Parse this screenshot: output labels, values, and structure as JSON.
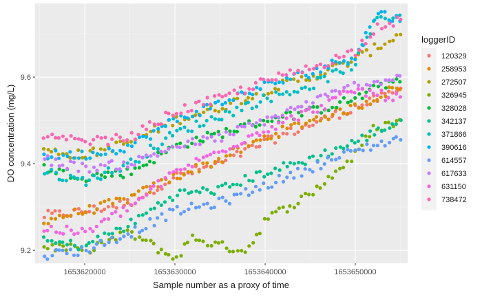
{
  "chart_data": {
    "type": "scatter",
    "title": "",
    "xlabel": "Sample number as a proxy of time",
    "ylabel": "DO concentration (mg/L)",
    "xlim": [
      1653614500,
      1653655800
    ],
    "ylim": [
      9.17,
      9.77
    ],
    "x_ticks": [
      1653620000,
      1653630000,
      1653640000,
      1653650000
    ],
    "x_tick_labels": [
      "1653620000",
      "1653630000",
      "1653640000",
      "1653650000"
    ],
    "y_ticks": [
      9.2,
      9.4,
      9.6
    ],
    "y_tick_labels": [
      "9.2",
      "9.4",
      "9.6"
    ],
    "grid": true,
    "panel_background": "#ebebeb",
    "legend": {
      "title": "loggerID",
      "position": "right"
    },
    "x_range": [
      1653615500,
      1653655000
    ],
    "series": [
      {
        "name": "120329",
        "color": "#F8766D",
        "points": [
          [
            1653615500,
            9.28
          ],
          [
            1653620000,
            9.29
          ],
          [
            1653625000,
            9.31
          ],
          [
            1653630000,
            9.37
          ],
          [
            1653635000,
            9.4
          ],
          [
            1653640000,
            9.45
          ],
          [
            1653645000,
            9.49
          ],
          [
            1653650000,
            9.53
          ],
          [
            1653655000,
            9.57
          ]
        ]
      },
      {
        "name": "258953",
        "color": "#DE8C00",
        "points": [
          [
            1653615500,
            9.27
          ],
          [
            1653620000,
            9.29
          ],
          [
            1653625000,
            9.32
          ],
          [
            1653630000,
            9.37
          ],
          [
            1653635000,
            9.41
          ],
          [
            1653640000,
            9.46
          ],
          [
            1653645000,
            9.5
          ],
          [
            1653650000,
            9.53
          ],
          [
            1653655000,
            9.58
          ]
        ]
      },
      {
        "name": "272507",
        "color": "#B79F00",
        "points": [
          [
            1653615500,
            9.43
          ],
          [
            1653620000,
            9.42
          ],
          [
            1653625000,
            9.45
          ],
          [
            1653630000,
            9.5
          ],
          [
            1653635000,
            9.53
          ],
          [
            1653640000,
            9.57
          ],
          [
            1653645000,
            9.6
          ],
          [
            1653650000,
            9.64
          ],
          [
            1653655000,
            9.7
          ]
        ]
      },
      {
        "name": "326945",
        "color": "#7CAE00",
        "points": [
          [
            1653615500,
            9.21
          ],
          [
            1653620000,
            9.2
          ],
          [
            1653625000,
            9.24
          ],
          [
            1653628500,
            9.2
          ],
          [
            1653630000,
            9.18
          ],
          [
            1653632000,
            9.23
          ],
          [
            1653635000,
            9.21
          ],
          [
            1653638000,
            9.2
          ],
          [
            1653640000,
            9.27
          ],
          [
            1653645000,
            9.33
          ],
          [
            1653650000,
            9.42
          ],
          [
            1653652000,
            9.48
          ],
          [
            1653655000,
            9.5
          ]
        ]
      },
      {
        "name": "328028",
        "color": "#00BA38",
        "points": [
          [
            1653615500,
            9.39
          ],
          [
            1653620000,
            9.37
          ],
          [
            1653625000,
            9.38
          ],
          [
            1653630000,
            9.44
          ],
          [
            1653635000,
            9.47
          ],
          [
            1653640000,
            9.5
          ],
          [
            1653645000,
            9.52
          ],
          [
            1653650000,
            9.55
          ],
          [
            1653655000,
            9.6
          ]
        ]
      },
      {
        "name": "342137",
        "color": "#00C08B",
        "points": [
          [
            1653615500,
            9.22
          ],
          [
            1653620000,
            9.21
          ],
          [
            1653625000,
            9.26
          ],
          [
            1653630000,
            9.33
          ],
          [
            1653635000,
            9.34
          ],
          [
            1653640000,
            9.38
          ],
          [
            1653645000,
            9.41
          ],
          [
            1653650000,
            9.45
          ],
          [
            1653655000,
            9.5
          ]
        ]
      },
      {
        "name": "371866",
        "color": "#00BFC4",
        "points": [
          [
            1653615500,
            9.38
          ],
          [
            1653620000,
            9.36
          ],
          [
            1653625000,
            9.4
          ],
          [
            1653630000,
            9.47
          ],
          [
            1653635000,
            9.51
          ],
          [
            1653640000,
            9.55
          ],
          [
            1653645000,
            9.58
          ],
          [
            1653650000,
            9.63
          ],
          [
            1653652500,
            9.74
          ],
          [
            1653655000,
            9.74
          ]
        ]
      },
      {
        "name": "390616",
        "color": "#00B4F0",
        "points": [
          [
            1653615500,
            9.42
          ],
          [
            1653620000,
            9.42
          ],
          [
            1653625000,
            9.44
          ],
          [
            1653630000,
            9.5
          ],
          [
            1653635000,
            9.54
          ],
          [
            1653640000,
            9.58
          ],
          [
            1653645000,
            9.61
          ],
          [
            1653650000,
            9.65
          ],
          [
            1653652500,
            9.75
          ],
          [
            1653655000,
            9.73
          ]
        ]
      },
      {
        "name": "614557",
        "color": "#619CFF",
        "points": [
          [
            1653615500,
            9.19
          ],
          [
            1653620000,
            9.2
          ],
          [
            1653625000,
            9.24
          ],
          [
            1653630000,
            9.29
          ],
          [
            1653635000,
            9.31
          ],
          [
            1653640000,
            9.35
          ],
          [
            1653645000,
            9.39
          ],
          [
            1653650000,
            9.43
          ],
          [
            1653655000,
            9.46
          ]
        ]
      },
      {
        "name": "617633",
        "color": "#C77CFF",
        "points": [
          [
            1653615500,
            9.41
          ],
          [
            1653620000,
            9.39
          ],
          [
            1653625000,
            9.4
          ],
          [
            1653630000,
            9.44
          ],
          [
            1653635000,
            9.46
          ],
          [
            1653640000,
            9.5
          ],
          [
            1653645000,
            9.54
          ],
          [
            1653650000,
            9.58
          ],
          [
            1653655000,
            9.6
          ]
        ]
      },
      {
        "name": "631150",
        "color": "#F564E3",
        "points": [
          [
            1653615500,
            9.25
          ],
          [
            1653620000,
            9.24
          ],
          [
            1653625000,
            9.3
          ],
          [
            1653630000,
            9.38
          ],
          [
            1653635000,
            9.43
          ],
          [
            1653640000,
            9.48
          ],
          [
            1653645000,
            9.52
          ],
          [
            1653650000,
            9.57
          ],
          [
            1653655000,
            9.55
          ]
        ]
      },
      {
        "name": "738472",
        "color": "#FF64B0",
        "points": [
          [
            1653615500,
            9.46
          ],
          [
            1653620000,
            9.45
          ],
          [
            1653625000,
            9.46
          ],
          [
            1653630000,
            9.52
          ],
          [
            1653635000,
            9.55
          ],
          [
            1653640000,
            9.59
          ],
          [
            1653645000,
            9.62
          ],
          [
            1653650000,
            9.66
          ],
          [
            1653652500,
            9.72
          ],
          [
            1653655000,
            9.73
          ]
        ]
      }
    ]
  }
}
